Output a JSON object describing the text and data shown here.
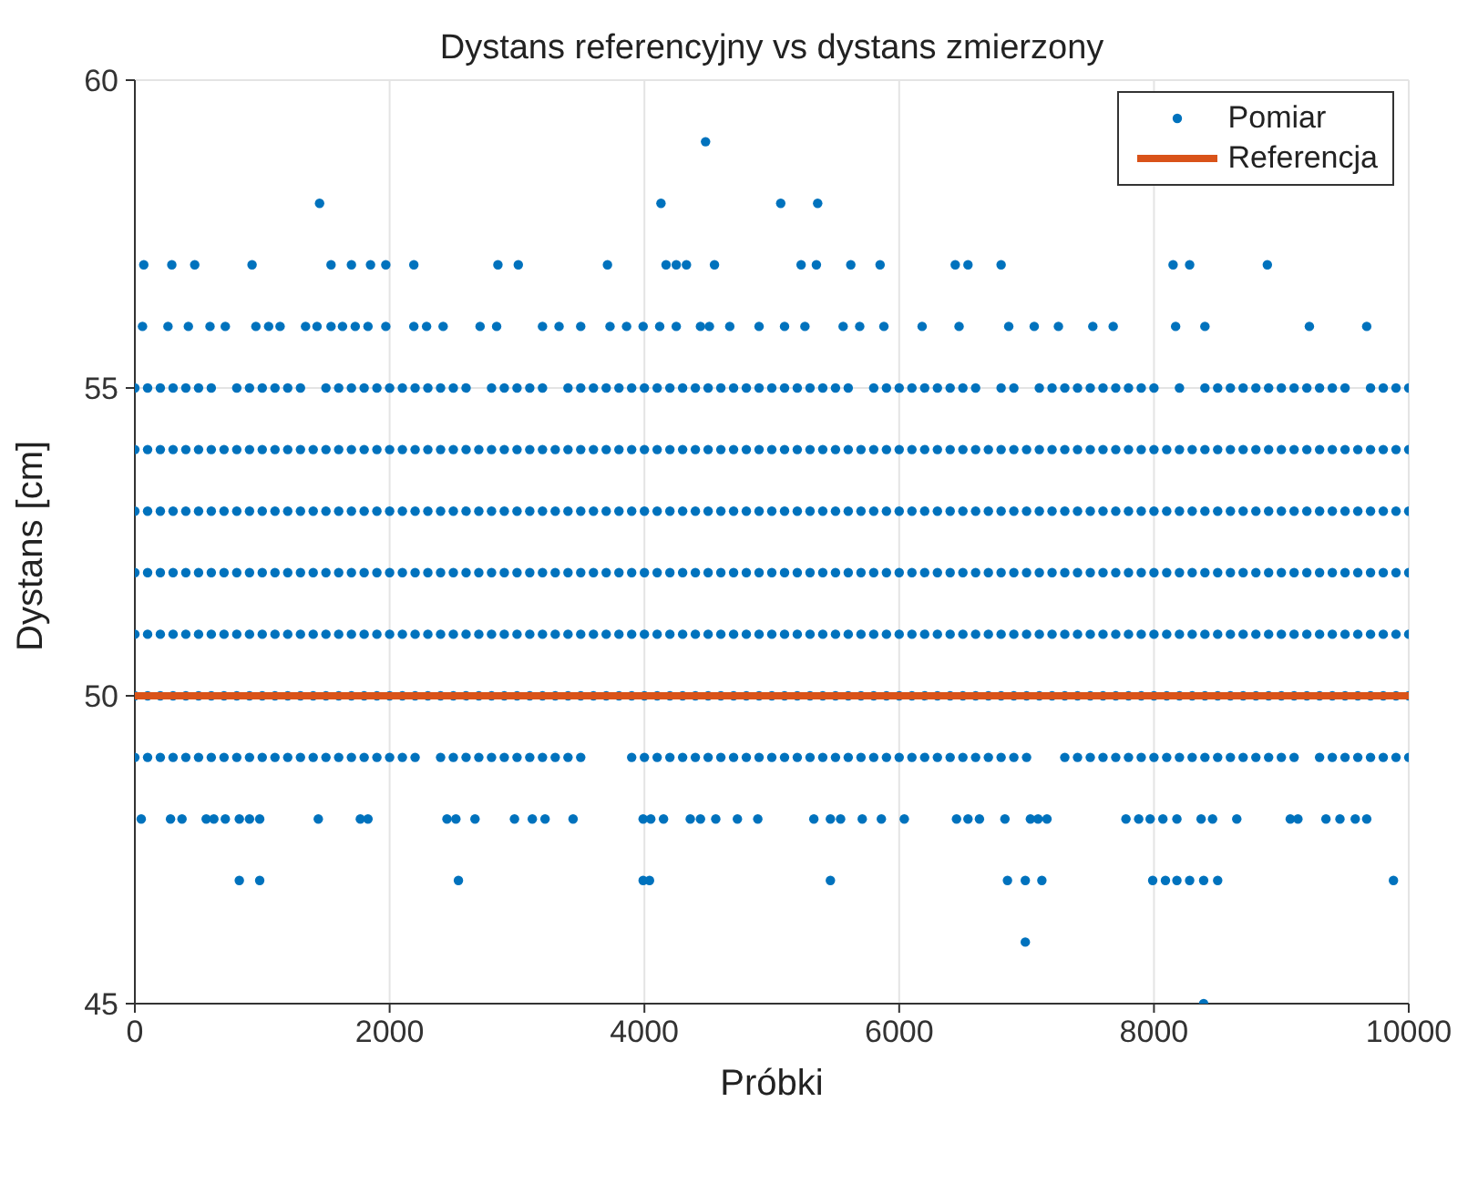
{
  "chart_data": {
    "type": "scatter",
    "title": "Dystans referencyjny vs dystans zmierzony",
    "xlabel": "Próbki",
    "ylabel": "Dystans [cm]",
    "xlim": [
      0,
      10000
    ],
    "xticks": [
      0,
      2000,
      4000,
      6000,
      8000,
      10000
    ],
    "ylim": [
      45,
      60
    ],
    "yticks": [
      45,
      50,
      55,
      60
    ],
    "grid": true,
    "legend": "top right",
    "marker": "circle",
    "series": [
      {
        "name": "Pomiar",
        "type": "scatter",
        "color": "#0072bd",
        "x": [
          0,
          100,
          200,
          300,
          400,
          500,
          600,
          700,
          800,
          900,
          1000,
          1100,
          1200,
          1300,
          1400,
          1500,
          1600,
          1700,
          1800,
          1900,
          2000,
          2100,
          2200,
          2300,
          2400,
          2500,
          2600,
          2700,
          2800,
          2900,
          3000,
          3100,
          3200,
          3300,
          3400,
          3500,
          3600,
          3700,
          3800,
          3900,
          4000,
          4100,
          4200,
          4300,
          4400,
          4500,
          4600,
          4700,
          4800,
          4900,
          5000,
          5100,
          5200,
          5300,
          5400,
          5500,
          5600,
          5700,
          5800,
          5900,
          6000,
          6100,
          6200,
          6300,
          6400,
          6500,
          6600,
          6700,
          6800,
          6900,
          7000,
          7100,
          7200,
          7300,
          7400,
          7500,
          7600,
          7700,
          7800,
          7900,
          8000,
          8100,
          8200,
          8300,
          8400,
          8500,
          8600,
          8700,
          8800,
          8900,
          9000,
          9100,
          9200,
          9300,
          9400,
          9500,
          9600,
          9700,
          9800,
          9900,
          10000
        ],
        "values": [
          54,
          54,
          54,
          54,
          54,
          54,
          54,
          54,
          54,
          54,
          54,
          54,
          54,
          54,
          54,
          54,
          54,
          54,
          54,
          54,
          54,
          54,
          54,
          54,
          54,
          54,
          54,
          54,
          54,
          54,
          54,
          54,
          54,
          54,
          54,
          54,
          54,
          54,
          54,
          54,
          54,
          54,
          54,
          54,
          54,
          54,
          54,
          54,
          54,
          54,
          54,
          54,
          54,
          54,
          54,
          54,
          54,
          54,
          54,
          54,
          54,
          54,
          54,
          54,
          54,
          54,
          54,
          54,
          54,
          54,
          54,
          54,
          54,
          54,
          54,
          54,
          54,
          54,
          54,
          54,
          54,
          54,
          54,
          54,
          54,
          54,
          54,
          54,
          54,
          54,
          54,
          54,
          54,
          54,
          54,
          54,
          54,
          54,
          54,
          54,
          54
        ]
      },
      {
        "type": "scatter",
        "color": "#0072bd",
        "x": [
          0,
          100,
          200,
          300,
          400,
          500,
          600,
          700,
          800,
          900,
          1000,
          1100,
          1200,
          1300,
          1400,
          1500,
          1600,
          1700,
          1800,
          1900,
          2000,
          2100,
          2200,
          2300,
          2400,
          2500,
          2600,
          2700,
          2800,
          2900,
          3000,
          3100,
          3200,
          3300,
          3400,
          3500,
          3600,
          3700,
          3800,
          3900,
          4000,
          4100,
          4200,
          4300,
          4400,
          4500,
          4600,
          4700,
          4800,
          4900,
          5000,
          5100,
          5200,
          5300,
          5400,
          5500,
          5600,
          5700,
          5800,
          5900,
          6000,
          6100,
          6200,
          6300,
          6400,
          6500,
          6600,
          6700,
          6800,
          6900,
          7000,
          7100,
          7200,
          7300,
          7400,
          7500,
          7600,
          7700,
          7800,
          7900,
          8000,
          8100,
          8200,
          8300,
          8400,
          8500,
          8600,
          8700,
          8800,
          8900,
          9000,
          9100,
          9200,
          9300,
          9400,
          9500,
          9600,
          9700,
          9800,
          9900,
          10000
        ],
        "values": [
          53,
          53,
          53,
          53,
          53,
          53,
          53,
          53,
          53,
          53,
          53,
          53,
          53,
          53,
          53,
          53,
          53,
          53,
          53,
          53,
          53,
          53,
          53,
          53,
          53,
          53,
          53,
          53,
          53,
          53,
          53,
          53,
          53,
          53,
          53,
          53,
          53,
          53,
          53,
          53,
          53,
          53,
          53,
          53,
          53,
          53,
          53,
          53,
          53,
          53,
          53,
          53,
          53,
          53,
          53,
          53,
          53,
          53,
          53,
          53,
          53,
          53,
          53,
          53,
          53,
          53,
          53,
          53,
          53,
          53,
          53,
          53,
          53,
          53,
          53,
          53,
          53,
          53,
          53,
          53,
          53,
          53,
          53,
          53,
          53,
          53,
          53,
          53,
          53,
          53,
          53,
          53,
          53,
          53,
          53,
          53,
          53,
          53,
          53,
          53,
          53
        ]
      },
      {
        "type": "scatter",
        "color": "#0072bd",
        "x": [
          0,
          100,
          200,
          300,
          400,
          500,
          600,
          700,
          800,
          900,
          1000,
          1100,
          1200,
          1300,
          1400,
          1500,
          1600,
          1700,
          1800,
          1900,
          2000,
          2100,
          2200,
          2300,
          2400,
          2500,
          2600,
          2700,
          2800,
          2900,
          3000,
          3100,
          3200,
          3300,
          3400,
          3500,
          3600,
          3700,
          3800,
          3900,
          4000,
          4100,
          4200,
          4300,
          4400,
          4500,
          4600,
          4700,
          4800,
          4900,
          5000,
          5100,
          5200,
          5300,
          5400,
          5500,
          5600,
          5700,
          5800,
          5900,
          6000,
          6100,
          6200,
          6300,
          6400,
          6500,
          6600,
          6700,
          6800,
          6900,
          7000,
          7100,
          7200,
          7300,
          7400,
          7500,
          7600,
          7700,
          7800,
          7900,
          8000,
          8100,
          8200,
          8300,
          8400,
          8500,
          8600,
          8700,
          8800,
          8900,
          9000,
          9100,
          9200,
          9300,
          9400,
          9500,
          9600,
          9700,
          9800,
          9900,
          10000
        ],
        "values": [
          52,
          52,
          52,
          52,
          52,
          52,
          52,
          52,
          52,
          52,
          52,
          52,
          52,
          52,
          52,
          52,
          52,
          52,
          52,
          52,
          52,
          52,
          52,
          52,
          52,
          52,
          52,
          52,
          52,
          52,
          52,
          52,
          52,
          52,
          52,
          52,
          52,
          52,
          52,
          52,
          52,
          52,
          52,
          52,
          52,
          52,
          52,
          52,
          52,
          52,
          52,
          52,
          52,
          52,
          52,
          52,
          52,
          52,
          52,
          52,
          52,
          52,
          52,
          52,
          52,
          52,
          52,
          52,
          52,
          52,
          52,
          52,
          52,
          52,
          52,
          52,
          52,
          52,
          52,
          52,
          52,
          52,
          52,
          52,
          52,
          52,
          52,
          52,
          52,
          52,
          52,
          52,
          52,
          52,
          52,
          52,
          52,
          52,
          52,
          52,
          52
        ]
      },
      {
        "type": "scatter",
        "color": "#0072bd",
        "x": [
          0,
          100,
          200,
          300,
          400,
          500,
          600,
          700,
          800,
          900,
          1000,
          1100,
          1200,
          1300,
          1400,
          1500,
          1600,
          1700,
          1800,
          1900,
          2000,
          2100,
          2200,
          2300,
          2400,
          2500,
          2600,
          2700,
          2800,
          2900,
          3000,
          3100,
          3200,
          3300,
          3400,
          3500,
          3600,
          3700,
          3800,
          3900,
          4000,
          4100,
          4200,
          4300,
          4400,
          4500,
          4600,
          4700,
          4800,
          4900,
          5000,
          5100,
          5200,
          5300,
          5400,
          5500,
          5600,
          5700,
          5800,
          5900,
          6000,
          6100,
          6200,
          6300,
          6400,
          6500,
          6600,
          6700,
          6800,
          6900,
          7000,
          7100,
          7200,
          7300,
          7400,
          7500,
          7600,
          7700,
          7800,
          7900,
          8000,
          8100,
          8200,
          8300,
          8400,
          8500,
          8600,
          8700,
          8800,
          8900,
          9000,
          9100,
          9200,
          9300,
          9400,
          9500,
          9600,
          9700,
          9800,
          9900,
          10000
        ],
        "values": [
          51,
          51,
          51,
          51,
          51,
          51,
          51,
          51,
          51,
          51,
          51,
          51,
          51,
          51,
          51,
          51,
          51,
          51,
          51,
          51,
          51,
          51,
          51,
          51,
          51,
          51,
          51,
          51,
          51,
          51,
          51,
          51,
          51,
          51,
          51,
          51,
          51,
          51,
          51,
          51,
          51,
          51,
          51,
          51,
          51,
          51,
          51,
          51,
          51,
          51,
          51,
          51,
          51,
          51,
          51,
          51,
          51,
          51,
          51,
          51,
          51,
          51,
          51,
          51,
          51,
          51,
          51,
          51,
          51,
          51,
          51,
          51,
          51,
          51,
          51,
          51,
          51,
          51,
          51,
          51,
          51,
          51,
          51,
          51,
          51,
          51,
          51,
          51,
          51,
          51,
          51,
          51,
          51,
          51,
          51,
          51,
          51,
          51,
          51,
          51,
          51
        ]
      },
      {
        "type": "scatter",
        "color": "#0072bd",
        "x": [
          0,
          100,
          200,
          300,
          400,
          500,
          600,
          700,
          800,
          900,
          1000,
          1100,
          1200,
          1300,
          1400,
          1500,
          1600,
          1700,
          1800,
          1900,
          2000,
          2100,
          2200,
          2300,
          2400,
          2500,
          2600,
          2700,
          2800,
          2900,
          3000,
          3100,
          3200,
          3300,
          3400,
          3500,
          3600,
          3700,
          3800,
          3900,
          4000,
          4100,
          4200,
          4300,
          4400,
          4500,
          4600,
          4700,
          4800,
          4900,
          5000,
          5100,
          5200,
          5300,
          5400,
          5500,
          5600,
          5700,
          5800,
          5900,
          6000,
          6100,
          6200,
          6300,
          6400,
          6500,
          6600,
          6700,
          6800,
          6900,
          7000,
          7100,
          7200,
          7300,
          7400,
          7500,
          7600,
          7700,
          7800,
          7900,
          8000,
          8100,
          8200,
          8300,
          8400,
          8500,
          8600,
          8700,
          8800,
          8900,
          9000,
          9100,
          9200,
          9300,
          9400,
          9500,
          9600,
          9700,
          9800,
          9900,
          10000
        ],
        "values": [
          50,
          50,
          50,
          50,
          50,
          50,
          50,
          50,
          50,
          50,
          50,
          50,
          50,
          50,
          50,
          50,
          50,
          50,
          50,
          50,
          50,
          50,
          50,
          50,
          50,
          50,
          50,
          50,
          50,
          50,
          50,
          50,
          50,
          50,
          50,
          50,
          50,
          50,
          50,
          50,
          50,
          50,
          50,
          50,
          50,
          50,
          50,
          50,
          50,
          50,
          50,
          50,
          50,
          50,
          50,
          50,
          50,
          50,
          50,
          50,
          50,
          50,
          50,
          50,
          50,
          50,
          50,
          50,
          50,
          50,
          50,
          50,
          50,
          50,
          50,
          50,
          50,
          50,
          50,
          50,
          50,
          50,
          50,
          50,
          50,
          50,
          50,
          50,
          50,
          50,
          50,
          50,
          50,
          50,
          50,
          50,
          50,
          50,
          50,
          50,
          50
        ]
      },
      {
        "type": "scatter",
        "color": "#0072bd",
        "x": [
          0,
          100,
          200,
          300,
          400,
          500,
          600,
          800,
          900,
          1000,
          1100,
          1200,
          1300,
          1500,
          1600,
          1700,
          1800,
          1900,
          2000,
          2100,
          2200,
          2300,
          2400,
          2500,
          2600,
          2800,
          2900,
          3000,
          3100,
          3200,
          3400,
          3500,
          3600,
          3700,
          3800,
          3900,
          4000,
          4100,
          4200,
          4300,
          4400,
          4500,
          4600,
          4700,
          4800,
          4900,
          5000,
          5100,
          5200,
          5300,
          5400,
          5500,
          5600,
          5800,
          5900,
          6000,
          6100,
          6200,
          6300,
          6400,
          6500,
          6600,
          6800,
          6900,
          7100,
          7200,
          7300,
          7400,
          7500,
          7600,
          7700,
          7800,
          7900,
          8000,
          8200,
          8400,
          8500,
          8600,
          8700,
          8800,
          8900,
          9000,
          9100,
          9200,
          9300,
          9400,
          9500,
          9700,
          9800,
          9900,
          10000
        ],
        "values": [
          55,
          55,
          55,
          55,
          55,
          55,
          55,
          55,
          55,
          55,
          55,
          55,
          55,
          55,
          55,
          55,
          55,
          55,
          55,
          55,
          55,
          55,
          55,
          55,
          55,
          55,
          55,
          55,
          55,
          55,
          55,
          55,
          55,
          55,
          55,
          55,
          55,
          55,
          55,
          55,
          55,
          55,
          55,
          55,
          55,
          55,
          55,
          55,
          55,
          55,
          55,
          55,
          55,
          55,
          55,
          55,
          55,
          55,
          55,
          55,
          55,
          55,
          55,
          55,
          55,
          55,
          55,
          55,
          55,
          55,
          55,
          55,
          55,
          55,
          55,
          55,
          55,
          55,
          55,
          55,
          55,
          55,
          55,
          55,
          55,
          55,
          55,
          55,
          55,
          55,
          55
        ]
      },
      {
        "type": "scatter",
        "color": "#0072bd",
        "x": [
          0,
          100,
          200,
          300,
          400,
          500,
          600,
          700,
          800,
          900,
          1000,
          1100,
          1200,
          1300,
          1400,
          1500,
          1600,
          1700,
          1800,
          1900,
          2000,
          2100,
          2200,
          2400,
          2500,
          2600,
          2700,
          2800,
          2900,
          3000,
          3100,
          3200,
          3300,
          3400,
          3500,
          3900,
          4000,
          4100,
          4200,
          4300,
          4400,
          4500,
          4600,
          4700,
          4800,
          4900,
          5000,
          5100,
          5200,
          5300,
          5400,
          5500,
          5600,
          5700,
          5800,
          5900,
          6000,
          6100,
          6200,
          6300,
          6400,
          6500,
          6600,
          6700,
          6800,
          6900,
          7000,
          7300,
          7400,
          7500,
          7600,
          7700,
          7800,
          7900,
          8000,
          8100,
          8200,
          8300,
          8400,
          8500,
          8600,
          8700,
          8800,
          8900,
          9000,
          9100,
          9300,
          9400,
          9500,
          9600,
          9700,
          9800,
          9900,
          10000
        ],
        "values": [
          49,
          49,
          49,
          49,
          49,
          49,
          49,
          49,
          49,
          49,
          49,
          49,
          49,
          49,
          49,
          49,
          49,
          49,
          49,
          49,
          49,
          49,
          49,
          49,
          49,
          49,
          49,
          49,
          49,
          49,
          49,
          49,
          49,
          49,
          49,
          49,
          49,
          49,
          49,
          49,
          49,
          49,
          49,
          49,
          49,
          49,
          49,
          49,
          49,
          49,
          49,
          49,
          49,
          49,
          49,
          49,
          49,
          49,
          49,
          49,
          49,
          49,
          49,
          49,
          49,
          49,
          49,
          49,
          49,
          49,
          49,
          49,
          49,
          49,
          49,
          49,
          49,
          49,
          49,
          49,
          49,
          49,
          49,
          49,
          49,
          49,
          49,
          49,
          49,
          49,
          49,
          49,
          49,
          49
        ]
      },
      {
        "type": "scatter",
        "color": "#0072bd",
        "x": [
          60,
          260,
          420,
          590,
          710,
          950,
          1050,
          1140,
          1340,
          1430,
          1540,
          1630,
          1730,
          1830,
          1970,
          2190,
          2290,
          2420,
          2710,
          2840,
          3200,
          3330,
          3500,
          3730,
          3860,
          3990,
          4120,
          4250,
          4440,
          4510,
          4670,
          4900,
          5100,
          5260,
          5560,
          5690,
          5880,
          6180,
          6470,
          6860,
          7060,
          7250,
          7520,
          7680,
          8170,
          8400,
          9220,
          9670
        ],
        "values": [
          56,
          56,
          56,
          56,
          56,
          56,
          56,
          56,
          56,
          56,
          56,
          56,
          56,
          56,
          56,
          56,
          56,
          56,
          56,
          56,
          56,
          56,
          56,
          56,
          56,
          56,
          56,
          56,
          56,
          56,
          56,
          56,
          56,
          56,
          56,
          56,
          56,
          56,
          56,
          56,
          56,
          56,
          56,
          56,
          56,
          56,
          56,
          56
        ]
      },
      {
        "type": "scatter",
        "color": "#0072bd",
        "x": [
          70,
          290,
          470,
          920,
          1540,
          1700,
          1850,
          1970,
          2190,
          2850,
          3010,
          3710,
          4170,
          4250,
          4330,
          4550,
          5230,
          5350,
          5620,
          5850,
          6440,
          6540,
          6800,
          8150,
          8280,
          8890
        ],
        "values": [
          57,
          57,
          57,
          57,
          57,
          57,
          57,
          57,
          57,
          57,
          57,
          57,
          57,
          57,
          57,
          57,
          57,
          57,
          57,
          57,
          57,
          57,
          57,
          57,
          57,
          57
        ]
      },
      {
        "type": "scatter",
        "color": "#0072bd",
        "x": [
          1450,
          4130,
          5070,
          5360,
          4480
        ],
        "values": [
          58,
          58,
          58,
          58,
          59
        ]
      },
      {
        "type": "scatter",
        "color": "#0072bd",
        "x": [
          50,
          280,
          370,
          560,
          620,
          710,
          820,
          900,
          980,
          1440,
          1770,
          1830,
          2450,
          2520,
          2670,
          2980,
          3120,
          3220,
          3440,
          3990,
          4050,
          4150,
          4360,
          4440,
          4560,
          4730,
          4890,
          5330,
          5460,
          5540,
          5710,
          5860,
          6040,
          6450,
          6540,
          6630,
          6830,
          7030,
          7090,
          7160,
          7780,
          7880,
          7970,
          8070,
          8180,
          8370,
          8460,
          8650,
          9070,
          9130,
          9350,
          9460,
          9580,
          9670
        ],
        "values": [
          48,
          48,
          48,
          48,
          48,
          48,
          48,
          48,
          48,
          48,
          48,
          48,
          48,
          48,
          48,
          48,
          48,
          48,
          48,
          48,
          48,
          48,
          48,
          48,
          48,
          48,
          48,
          48,
          48,
          48,
          48,
          48,
          48,
          48,
          48,
          48,
          48,
          48,
          48,
          48,
          48,
          48,
          48,
          48,
          48,
          48,
          48,
          48,
          48,
          48,
          48,
          48,
          48,
          48
        ]
      },
      {
        "type": "scatter",
        "color": "#0072bd",
        "x": [
          820,
          980,
          2540,
          3990,
          4040,
          5460,
          6850,
          6990,
          7120,
          7990,
          8090,
          8180,
          8280,
          8390,
          8500,
          9880,
          6990,
          8390
        ],
        "values": [
          47,
          47,
          47,
          47,
          47,
          47,
          47,
          47,
          47,
          47,
          47,
          47,
          47,
          47,
          47,
          47,
          46,
          45
        ]
      },
      {
        "name": "Referencja",
        "type": "line",
        "marker": "none",
        "color": "#d95319",
        "line_style": "solid",
        "x": [
          0,
          10000
        ],
        "values": [
          50,
          50
        ]
      }
    ]
  }
}
